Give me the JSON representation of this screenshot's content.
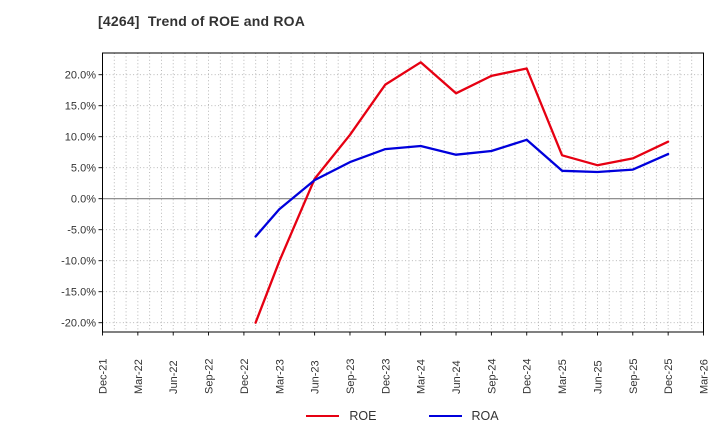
{
  "chart_data": {
    "type": "line",
    "title": "[4264]  Trend of ROE and ROA",
    "x_labels": [
      "Dec-21",
      "Mar-22",
      "Jun-22",
      "Sep-22",
      "Dec-22",
      "Mar-23",
      "Jun-23",
      "Sep-23",
      "Dec-23",
      "Mar-24",
      "Jun-24",
      "Sep-24",
      "Dec-24",
      "Mar-25",
      "Jun-25",
      "Sep-25",
      "Dec-25",
      "Mar-26"
    ],
    "y_ticks": [
      {
        "label": "20.0%",
        "value": 20
      },
      {
        "label": "15.0%",
        "value": 15
      },
      {
        "label": "10.0%",
        "value": 10
      },
      {
        "label": "5.0%",
        "value": 5
      },
      {
        "label": "0.0%",
        "value": 0
      },
      {
        "label": "-5.0%",
        "value": -5
      },
      {
        "label": "-10.0%",
        "value": -10
      },
      {
        "label": "-15.0%",
        "value": -15
      },
      {
        "label": "-20.0%",
        "value": -20
      }
    ],
    "ylim": [
      -21.5,
      23.5
    ],
    "x_span_quarters": 17,
    "x_span_months": 51,
    "grid": {
      "vertical": "monthly dotted",
      "horizontal": "every 5% dotted",
      "zero_line": "solid"
    },
    "legend_position": "bottom-center",
    "series": [
      {
        "name": "ROE",
        "color": "#e60012",
        "points": [
          [
            4.33,
            -20.0
          ],
          [
            5,
            -10.1
          ],
          [
            6,
            3.2
          ],
          [
            7,
            10.3
          ],
          [
            8,
            18.4
          ],
          [
            9,
            22.0
          ],
          [
            10,
            17.0
          ],
          [
            11,
            19.8
          ],
          [
            12,
            21.0
          ],
          [
            13,
            7.0
          ],
          [
            14,
            5.4
          ],
          [
            15,
            6.5
          ],
          [
            16,
            9.2
          ]
        ]
      },
      {
        "name": "ROA",
        "color": "#0000dc",
        "points": [
          [
            4.33,
            -6.1
          ],
          [
            5,
            -1.7
          ],
          [
            6,
            3.0
          ],
          [
            7,
            5.9
          ],
          [
            8,
            8.0
          ],
          [
            9,
            8.5
          ],
          [
            10,
            7.1
          ],
          [
            11,
            7.7
          ],
          [
            12,
            9.5
          ],
          [
            13,
            4.5
          ],
          [
            14,
            4.3
          ],
          [
            15,
            4.7
          ],
          [
            16,
            7.2
          ]
        ]
      }
    ]
  }
}
